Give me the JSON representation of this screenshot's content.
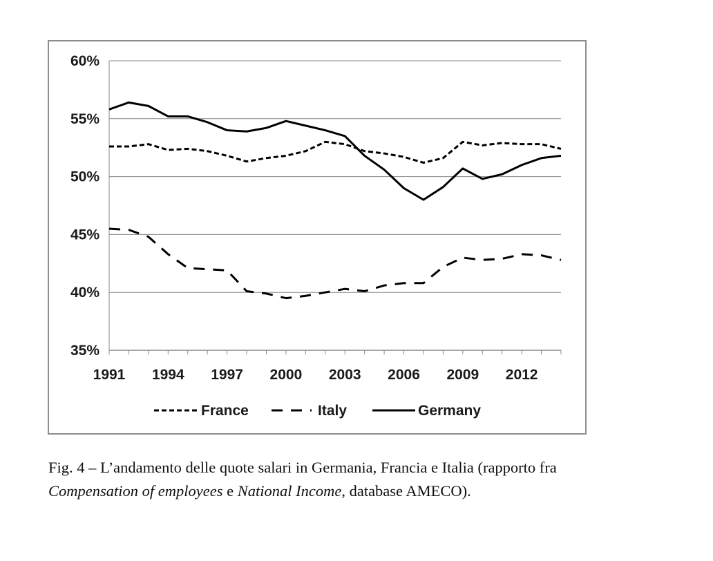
{
  "chart_data": {
    "type": "line",
    "title": "",
    "xlabel": "",
    "ylabel": "",
    "x": [
      1991,
      1992,
      1993,
      1994,
      1995,
      1996,
      1997,
      1998,
      1999,
      2000,
      2001,
      2002,
      2003,
      2004,
      2005,
      2006,
      2007,
      2008,
      2009,
      2010,
      2011,
      2012,
      2013,
      2014
    ],
    "x_ticks": [
      "1991",
      "1994",
      "1997",
      "2000",
      "2003",
      "2006",
      "2009",
      "2012"
    ],
    "y_ticks": [
      "35%",
      "40%",
      "45%",
      "50%",
      "55%",
      "60%"
    ],
    "ylim": [
      35,
      60
    ],
    "xlim": [
      1991,
      2014
    ],
    "grid": "horizontal",
    "legend_position": "bottom",
    "series": [
      {
        "name": "France",
        "style": "short-dash",
        "values": [
          52.6,
          52.6,
          52.8,
          52.3,
          52.4,
          52.2,
          51.8,
          51.3,
          51.6,
          51.8,
          52.2,
          53.0,
          52.8,
          52.2,
          52.0,
          51.7,
          51.2,
          51.6,
          53.0,
          52.7,
          52.9,
          52.8,
          52.8,
          52.4
        ]
      },
      {
        "name": "Italy",
        "style": "long-dash",
        "values": [
          45.5,
          45.4,
          44.8,
          43.3,
          42.1,
          42.0,
          41.9,
          40.1,
          39.9,
          39.5,
          39.7,
          40.0,
          40.3,
          40.1,
          40.6,
          40.8,
          40.8,
          42.2,
          43.0,
          42.8,
          42.9,
          43.3,
          43.2,
          42.8
        ]
      },
      {
        "name": "Germany",
        "style": "solid",
        "values": [
          55.8,
          56.4,
          56.1,
          55.2,
          55.2,
          54.7,
          54.0,
          53.9,
          54.2,
          54.8,
          54.4,
          54.0,
          53.5,
          51.8,
          50.6,
          49.0,
          48.0,
          49.1,
          50.7,
          49.8,
          50.2,
          51.0,
          51.6,
          51.8
        ]
      }
    ],
    "colors": {
      "line": "#000000",
      "grid": "#888888",
      "frame": "#8c8c8c"
    }
  },
  "caption": {
    "line1": "Fig. 4 – L’andamento delle quote salari in Germania, Francia e Italia (rapporto fra",
    "italic1": "Compensation of employees",
    "joiner": " e ",
    "italic2": "National Income",
    "tail": ", database AMECO)."
  }
}
